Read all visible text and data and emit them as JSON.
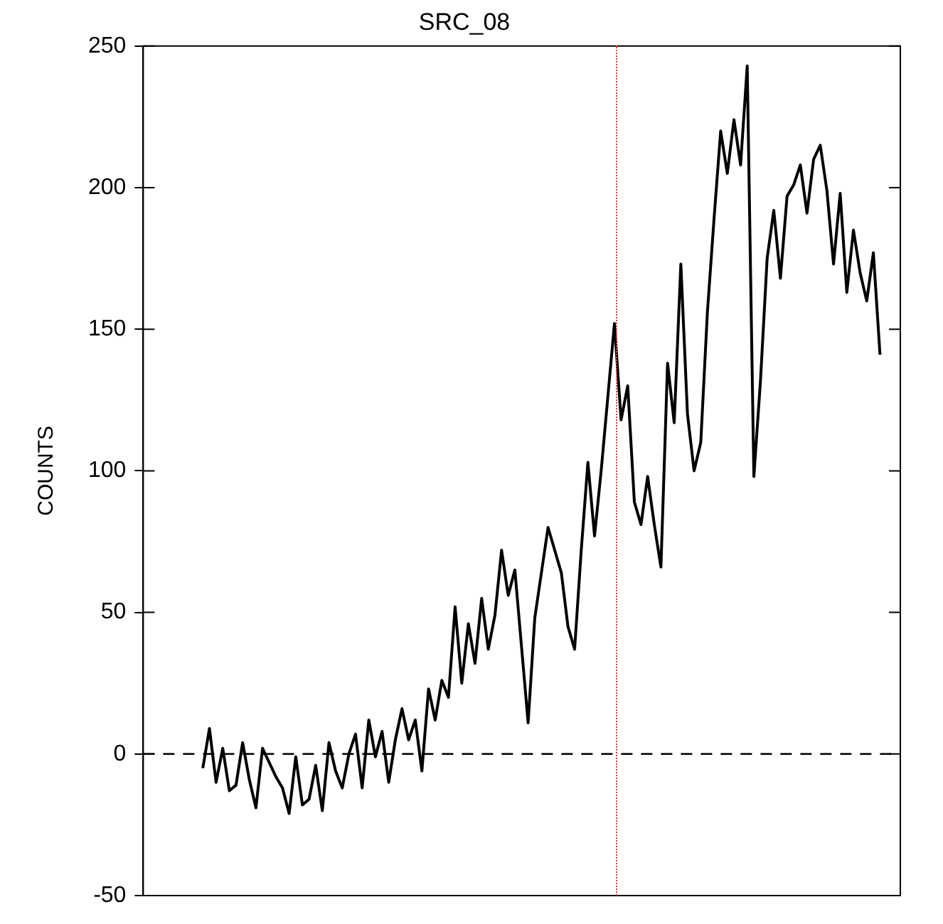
{
  "chart_data": {
    "type": "line",
    "title": "SRC_08",
    "ylabel": "COUNTS",
    "tick_labels": "y",
    "grid": false,
    "legend": false,
    "marker": "none",
    "line_style": "solid",
    "ylim": [
      -50,
      250
    ],
    "yticks": [
      -50,
      0,
      50,
      100,
      150,
      200,
      250
    ],
    "categories": [
      null,
      null,
      null,
      null,
      null,
      null,
      null,
      null,
      null,
      null,
      null,
      null,
      null,
      null,
      null,
      null,
      null,
      null,
      null,
      null,
      null,
      null,
      null,
      null,
      null,
      null,
      null,
      null,
      null,
      null,
      null,
      null,
      null,
      null,
      null,
      null,
      null,
      null,
      null,
      null,
      null,
      null,
      null,
      null,
      null,
      null,
      null,
      null,
      null,
      null,
      null,
      null,
      null,
      null,
      null,
      null,
      null,
      null,
      null,
      null,
      null,
      null,
      null,
      null,
      null,
      null,
      null,
      null,
      null,
      null,
      null,
      null,
      null,
      null,
      null,
      null,
      null,
      null,
      null,
      null,
      null,
      null,
      null,
      null,
      null,
      null,
      null,
      null,
      null,
      null,
      null,
      null,
      null,
      null,
      null,
      null,
      null,
      null,
      null,
      null,
      null,
      null,
      null
    ],
    "ref_lines": [
      {
        "axis": "y",
        "value": 0,
        "color": "#000000",
        "line_style": "dashed"
      }
    ],
    "series": [
      {
        "color": "#000000",
        "values": [
          -5,
          9,
          -10,
          2,
          -13,
          -11,
          4,
          -9,
          -19,
          2,
          -3,
          -8,
          -12,
          -21,
          -1,
          -18,
          -16,
          -4,
          -20,
          4,
          -6,
          -12,
          0,
          7,
          -12,
          12,
          -1,
          8,
          -10,
          5,
          16,
          5,
          12,
          -6,
          23,
          12,
          26,
          20,
          52,
          25,
          46,
          32,
          55,
          37,
          49,
          72,
          56,
          65,
          38,
          11,
          48,
          64,
          80,
          72,
          64,
          45,
          37,
          72,
          103,
          77,
          100,
          126,
          152,
          118,
          130,
          89,
          81,
          98,
          81,
          66,
          138,
          117,
          173,
          120,
          100,
          110,
          156,
          189,
          220,
          205,
          224,
          208,
          243,
          98,
          132,
          175,
          192,
          168,
          197,
          201,
          208,
          191,
          210,
          215,
          199,
          173,
          198,
          163,
          185,
          170,
          160,
          177,
          141
        ]
      }
    ]
  }
}
